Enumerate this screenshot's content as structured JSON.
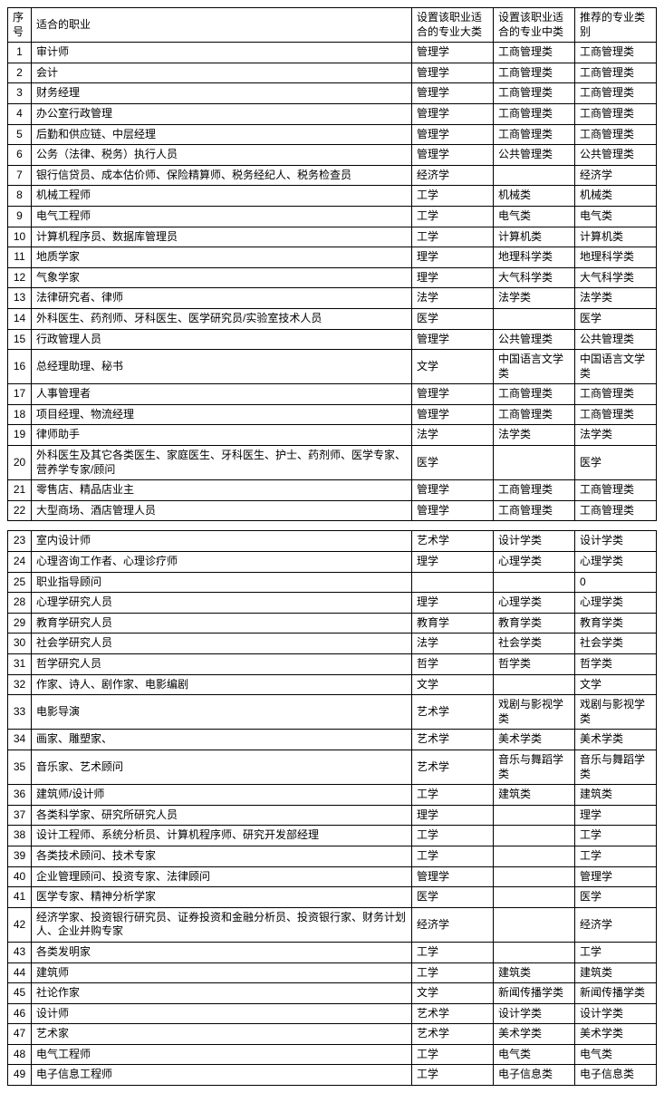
{
  "table": {
    "background_color": "#ffffff",
    "border_color": "#000000",
    "font_size": 12,
    "headers": {
      "num": "序号",
      "job": "适合的职业",
      "major": "设置该职业适合的专业大类",
      "middle": "设置该职业适合的专业中类",
      "rec": "推荐的专业类别"
    },
    "rows": [
      {
        "n": "1",
        "job": "审计师",
        "major": "管理学",
        "mid": "工商管理类",
        "rec": "工商管理类"
      },
      {
        "n": "2",
        "job": "会计",
        "major": "管理学",
        "mid": "工商管理类",
        "rec": "工商管理类"
      },
      {
        "n": "3",
        "job": "财务经理",
        "major": "管理学",
        "mid": "工商管理类",
        "rec": "工商管理类"
      },
      {
        "n": "4",
        "job": "办公室行政管理",
        "major": "管理学",
        "mid": "工商管理类",
        "rec": "工商管理类"
      },
      {
        "n": "5",
        "job": "后勤和供应链、中层经理",
        "major": "管理学",
        "mid": "工商管理类",
        "rec": "工商管理类"
      },
      {
        "n": "6",
        "job": "公务（法律、税务）执行人员",
        "major": "管理学",
        "mid": "公共管理类",
        "rec": "公共管理类"
      },
      {
        "n": "7",
        "job": "银行信贷员、成本估价师、保险精算师、税务经纪人、税务检查员",
        "major": "经济学",
        "mid": "",
        "rec": "经济学"
      },
      {
        "n": "8",
        "job": "机械工程师",
        "major": "工学",
        "mid": "机械类",
        "rec": "机械类"
      },
      {
        "n": "9",
        "job": "电气工程师",
        "major": "工学",
        "mid": "电气类",
        "rec": "电气类"
      },
      {
        "n": "10",
        "job": "计算机程序员、数据库管理员",
        "major": "工学",
        "mid": "计算机类",
        "rec": "计算机类"
      },
      {
        "n": "11",
        "job": "地质学家",
        "major": "理学",
        "mid": "地理科学类",
        "rec": "地理科学类"
      },
      {
        "n": "12",
        "job": "气象学家",
        "major": "理学",
        "mid": "大气科学类",
        "rec": "大气科学类"
      },
      {
        "n": "13",
        "job": "法律研究者、律师",
        "major": "法学",
        "mid": "法学类",
        "rec": "法学类"
      },
      {
        "n": "14",
        "job": "外科医生、药剂师、牙科医生、医学研究员/实验室技术人员",
        "major": "医学",
        "mid": "",
        "rec": "医学"
      },
      {
        "n": "15",
        "job": "行政管理人员",
        "major": "管理学",
        "mid": "公共管理类",
        "rec": "公共管理类"
      },
      {
        "n": "16",
        "job": "总经理助理、秘书",
        "major": "文学",
        "mid": "中国语言文学类",
        "rec": "中国语言文学类"
      },
      {
        "n": "17",
        "job": "人事管理者",
        "major": "管理学",
        "mid": "工商管理类",
        "rec": "工商管理类"
      },
      {
        "n": "18",
        "job": "项目经理、物流经理",
        "major": "管理学",
        "mid": "工商管理类",
        "rec": "工商管理类"
      },
      {
        "n": "19",
        "job": "律师助手",
        "major": "法学",
        "mid": "法学类",
        "rec": "法学类"
      },
      {
        "n": "20",
        "job": "外科医生及其它各类医生、家庭医生、牙科医生、护士、药剂师、医学专家、营养学专家/顾问",
        "major": "医学",
        "mid": "",
        "rec": "医学"
      },
      {
        "n": "21",
        "job": "零售店、精品店业主",
        "major": "管理学",
        "mid": "工商管理类",
        "rec": "工商管理类"
      },
      {
        "n": "22",
        "job": "大型商场、酒店管理人员",
        "major": "管理学",
        "mid": "工商管理类",
        "rec": "工商管理类"
      },
      {
        "gap": true
      },
      {
        "n": "23",
        "job": "室内设计师",
        "major": "艺术学",
        "mid": "设计学类",
        "rec": "设计学类"
      },
      {
        "n": "24",
        "job": "心理咨询工作者、心理诊疗师",
        "major": "理学",
        "mid": "心理学类",
        "rec": "心理学类"
      },
      {
        "n": "25",
        "job": "职业指导顾问",
        "major": "",
        "mid": "",
        "rec": "0"
      },
      {
        "n": "28",
        "job": "心理学研究人员",
        "major": "理学",
        "mid": "心理学类",
        "rec": "心理学类"
      },
      {
        "n": "29",
        "job": "教育学研究人员",
        "major": "教育学",
        "mid": "教育学类",
        "rec": "教育学类"
      },
      {
        "n": "30",
        "job": "社会学研究人员",
        "major": "法学",
        "mid": "社会学类",
        "rec": "社会学类"
      },
      {
        "n": "31",
        "job": "哲学研究人员",
        "major": "哲学",
        "mid": "哲学类",
        "rec": "哲学类"
      },
      {
        "n": "32",
        "job": "作家、诗人、剧作家、电影编剧",
        "major": "文学",
        "mid": "",
        "rec": "文学"
      },
      {
        "n": "33",
        "job": "电影导演",
        "major": "艺术学",
        "mid": "戏剧与影视学类",
        "rec": "戏剧与影视学类"
      },
      {
        "n": "34",
        "job": "画家、雕塑家、",
        "major": "艺术学",
        "mid": "美术学类",
        "rec": "美术学类"
      },
      {
        "n": "35",
        "job": "音乐家、艺术顾问",
        "major": "艺术学",
        "mid": "音乐与舞蹈学类",
        "rec": "音乐与舞蹈学类"
      },
      {
        "n": "36",
        "job": "建筑师/设计师",
        "major": "工学",
        "mid": "建筑类",
        "rec": "建筑类"
      },
      {
        "n": "37",
        "job": "各类科学家、研究所研究人员",
        "major": "理学",
        "mid": "",
        "rec": "理学"
      },
      {
        "n": "38",
        "job": "设计工程师、系统分析员、计算机程序师、研究开发部经理",
        "major": "工学",
        "mid": "",
        "rec": "工学"
      },
      {
        "n": "39",
        "job": "各类技术顾问、技术专家",
        "major": "工学",
        "mid": "",
        "rec": "工学"
      },
      {
        "n": "40",
        "job": "企业管理顾问、投资专家、法律顾问",
        "major": "管理学",
        "mid": "",
        "rec": "管理学"
      },
      {
        "n": "41",
        "job": "医学专家、精神分析学家",
        "major": "医学",
        "mid": "",
        "rec": "医学"
      },
      {
        "n": "42",
        "job": "经济学家、投资银行研究员、证券投资和金融分析员、投资银行家、财务计划人、企业并购专家",
        "major": "经济学",
        "mid": "",
        "rec": "经济学"
      },
      {
        "n": "43",
        "job": "各类发明家",
        "major": "工学",
        "mid": "",
        "rec": "工学"
      },
      {
        "n": "44",
        "job": "建筑师",
        "major": "工学",
        "mid": "建筑类",
        "rec": "建筑类"
      },
      {
        "n": "45",
        "job": "社论作家",
        "major": "文学",
        "mid": "新闻传播学类",
        "rec": "新闻传播学类"
      },
      {
        "n": "46",
        "job": "设计师",
        "major": "艺术学",
        "mid": "设计学类",
        "rec": "设计学类"
      },
      {
        "n": "47",
        "job": "艺术家",
        "major": "艺术学",
        "mid": "美术学类",
        "rec": "美术学类"
      },
      {
        "n": "48",
        "job": "电气工程师",
        "major": "工学",
        "mid": "电气类",
        "rec": "电气类"
      },
      {
        "n": "49",
        "job": "电子信息工程师",
        "major": "工学",
        "mid": "电子信息类",
        "rec": "电子信息类"
      }
    ]
  }
}
